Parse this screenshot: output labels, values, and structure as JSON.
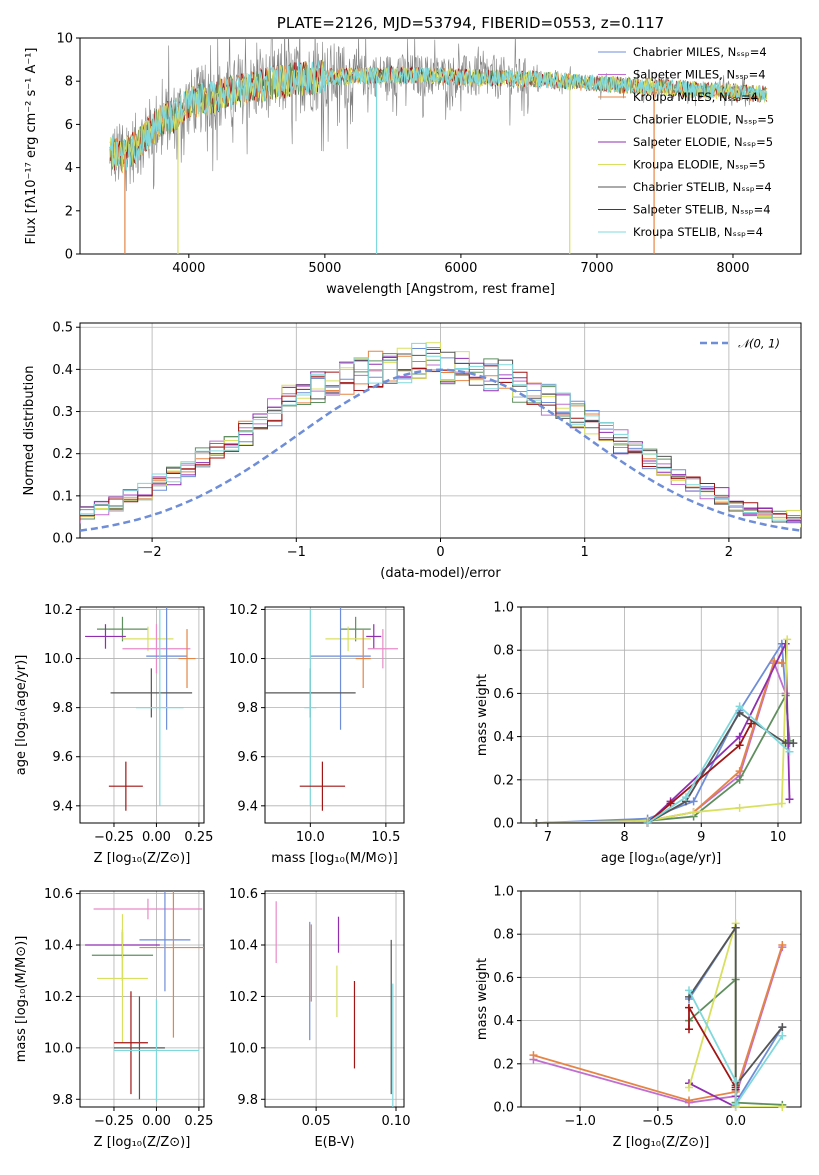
{
  "title": "PLATE=2126, MJD=53794, FIBERID=0553, z=0.117",
  "colors": {
    "Chabrier MILES": "#6f8ed8",
    "Salpeter MILES": "#c06fd0",
    "Kroupa MILES": "#e58545",
    "Chabrier ELODIE": "#5f8f5f",
    "Salpeter ELODIE": "#8f2fb0",
    "Kroupa ELODIE": "#d8e060",
    "Chabrier STELIB": "#555555",
    "Salpeter STELIB": "#a01515",
    "Kroupa STELIB": "#7fd8dc",
    "extra_pink": "#e88bc8",
    "gray_obs": "#808080",
    "grid": "#b0b0b0"
  },
  "chart_data": [
    {
      "id": "spectrum",
      "type": "line",
      "title": "PLATE=2126, MJD=53794, FIBERID=0553, z=0.117",
      "xlabel": "wavelength [Angstrom, rest frame]",
      "ylabel": "Flux [fλ10⁻¹⁷ erg cm⁻² s⁻¹ A⁻¹]",
      "xlim": [
        3200,
        8500
      ],
      "ylim": [
        0,
        10
      ],
      "xticks": [
        4000,
        5000,
        6000,
        7000,
        8000
      ],
      "yticks": [
        0,
        2,
        4,
        6,
        8,
        10
      ],
      "legend_position": "right",
      "legend": [
        "Chabrier MILES, Nₛₛₚ=4",
        "Salpeter MILES, Nₛₛₚ=4",
        "Kroupa MILES, Nₛₛₚ=4",
        "Chabrier ELODIE, Nₛₛₚ=5",
        "Salpeter ELODIE, Nₛₛₚ=5",
        "Kroupa ELODIE, Nₛₛₚ=5",
        "Chabrier STELIB, Nₛₛₚ=4",
        "Salpeter STELIB, Nₛₛₚ=4",
        "Kroupa STELIB, Nₛₛₚ=4"
      ],
      "continuum": {
        "x": [
          3420,
          3500,
          3600,
          3700,
          3800,
          3900,
          4000,
          4200,
          4400,
          4600,
          4800,
          5000,
          5500,
          6000,
          6500,
          7000,
          7500,
          8000,
          8250
        ],
        "y": [
          4.7,
          4.5,
          4.9,
          5.6,
          6.2,
          6.4,
          7.0,
          7.3,
          7.6,
          7.9,
          8.1,
          8.2,
          8.3,
          8.2,
          8.1,
          7.9,
          7.7,
          7.5,
          7.4
        ]
      },
      "spikes": [
        {
          "x": 3530,
          "y": 0,
          "color_key": "Kroupa MILES"
        },
        {
          "x": 3920,
          "y": 0,
          "color_key": "Kroupa ELODIE"
        },
        {
          "x": 5380,
          "y": 0,
          "color_key": "Kroupa STELIB"
        },
        {
          "x": 6800,
          "y": 0,
          "color_key": "Kroupa ELODIE"
        },
        {
          "x": 7420,
          "y": 0,
          "color_key": "Kroupa MILES"
        }
      ]
    },
    {
      "id": "residual-hist",
      "type": "histogram",
      "xlabel": "(data-model)/error",
      "ylabel": "Normed distribution",
      "xlim": [
        -2.5,
        2.5
      ],
      "ylim": [
        0,
        0.51
      ],
      "xticks": [
        -2,
        -1,
        0,
        1,
        2
      ],
      "yticks": [
        0.0,
        0.1,
        0.2,
        0.3,
        0.4,
        0.5
      ],
      "legend": [
        "𝒩(0, 1)"
      ],
      "legend_position": "top-right",
      "bin_width": 0.1,
      "center_values": [
        0.02,
        0.03,
        0.03,
        0.04,
        0.05,
        0.06,
        0.07,
        0.08,
        0.1,
        0.11,
        0.13,
        0.15,
        0.17,
        0.19,
        0.21,
        0.23,
        0.25,
        0.28,
        0.3,
        0.33,
        0.34,
        0.36,
        0.37,
        0.38,
        0.39,
        0.4,
        0.41,
        0.41,
        0.42,
        0.42,
        0.41,
        0.41,
        0.4,
        0.39,
        0.38,
        0.36,
        0.35,
        0.33,
        0.31,
        0.29,
        0.27,
        0.25,
        0.23,
        0.21,
        0.19,
        0.17,
        0.15,
        0.13,
        0.11,
        0.1,
        0.08,
        0.07,
        0.06,
        0.05,
        0.05,
        0.04,
        0.04,
        0.03,
        0.03,
        0.03,
        0.03
      ]
    },
    {
      "id": "z-age",
      "type": "errorbar",
      "xlabel": "Z [log₁₀(Z/Z⊙)]",
      "ylabel": "age  [log₁₀(age/yr)]",
      "xlim": [
        -0.45,
        0.28
      ],
      "ylim": [
        9.33,
        10.21
      ],
      "xticks": [
        -0.25,
        0.0,
        0.25
      ],
      "xticklabels": [
        "−0.25",
        "0.00",
        "0.25"
      ],
      "yticks": [
        9.4,
        9.6,
        9.8,
        10.0,
        10.2
      ],
      "points": [
        {
          "key": "Chabrier ELODIE",
          "x": -0.2,
          "xerr": 0.15,
          "y": 10.12,
          "yerr": 0.05
        },
        {
          "key": "Salpeter ELODIE",
          "x": -0.3,
          "xerr": 0.12,
          "y": 10.09,
          "yerr": 0.05
        },
        {
          "key": "Kroupa ELODIE",
          "x": -0.05,
          "xerr": 0.15,
          "y": 10.08,
          "yerr": 0.05
        },
        {
          "key": "extra_pink",
          "x": 0.0,
          "xerr": 0.2,
          "y": 10.04,
          "yerr": 0.1
        },
        {
          "key": "Chabrier MILES",
          "x": 0.06,
          "xerr": 0.12,
          "y": 10.01,
          "yerr": 0.3
        },
        {
          "key": "Kroupa MILES",
          "x": 0.18,
          "xerr": 0.05,
          "y": 10.0,
          "yerr": 0.12
        },
        {
          "key": "Chabrier STELIB",
          "x": -0.03,
          "xerr": 0.24,
          "y": 9.86,
          "yerr": 0.1
        },
        {
          "key": "Kroupa STELIB",
          "x": 0.02,
          "xerr": 0.14,
          "y": 9.8,
          "yerr": 0.4
        },
        {
          "key": "Salpeter STELIB",
          "x": -0.18,
          "xerr": 0.1,
          "y": 9.48,
          "yerr": 0.1
        }
      ]
    },
    {
      "id": "mass-age",
      "type": "errorbar",
      "xlabel": "mass [log₁₀(M/M⊙)]",
      "ylabel": "",
      "xlim": [
        9.7,
        10.62
      ],
      "ylim": [
        9.33,
        10.21
      ],
      "xticks": [
        10.0,
        10.5
      ],
      "xticklabels": [
        "10.0",
        "10.5"
      ],
      "yticks": [
        9.4,
        9.6,
        9.8,
        10.0,
        10.2
      ],
      "points": [
        {
          "key": "Chabrier ELODIE",
          "x": 10.3,
          "xerr": 0.1,
          "y": 10.12,
          "yerr": 0.05
        },
        {
          "key": "Salpeter ELODIE",
          "x": 10.42,
          "xerr": 0.05,
          "y": 10.09,
          "yerr": 0.05
        },
        {
          "key": "Kroupa ELODIE",
          "x": 10.25,
          "xerr": 0.15,
          "y": 10.08,
          "yerr": 0.05
        },
        {
          "key": "extra_pink",
          "x": 10.48,
          "xerr": 0.1,
          "y": 10.04,
          "yerr": 0.08
        },
        {
          "key": "Chabrier MILES",
          "x": 10.2,
          "xerr": 0.2,
          "y": 10.01,
          "yerr": 0.3
        },
        {
          "key": "Kroupa MILES",
          "x": 10.35,
          "xerr": 0.05,
          "y": 10.0,
          "yerr": 0.12
        },
        {
          "key": "Chabrier STELIB",
          "x": 10.0,
          "xerr": 0.3,
          "y": 9.86,
          "yerr": 0.1
        },
        {
          "key": "Kroupa STELIB",
          "x": 10.0,
          "xerr": 0.04,
          "y": 9.8,
          "yerr": 0.4
        },
        {
          "key": "Salpeter STELIB",
          "x": 10.08,
          "xerr": 0.15,
          "y": 9.48,
          "yerr": 0.1
        }
      ]
    },
    {
      "id": "age-weight",
      "type": "line",
      "xlabel": "age  [log₁₀(age/yr)]",
      "ylabel": "mass weight",
      "xlim": [
        6.65,
        10.3
      ],
      "ylim": [
        0,
        1.0
      ],
      "xticks": [
        7,
        8,
        9,
        10
      ],
      "yticks": [
        0.0,
        0.2,
        0.4,
        0.6,
        0.8,
        1.0
      ],
      "series": [
        {
          "key": "Chabrier MILES",
          "x": [
            6.85,
            8.3,
            8.9,
            9.5,
            10.05,
            10.15
          ],
          "y": [
            0.0,
            0.02,
            0.1,
            0.52,
            0.83,
            0.37
          ]
        },
        {
          "key": "Salpeter MILES",
          "x": [
            6.85,
            8.3,
            8.9,
            9.5,
            9.95,
            10.1
          ],
          "y": [
            0.0,
            0.01,
            0.05,
            0.22,
            0.74,
            0.6
          ]
        },
        {
          "key": "Kroupa MILES",
          "x": [
            6.85,
            8.3,
            8.9,
            9.5,
            9.95,
            10.05
          ],
          "y": [
            0.0,
            0.01,
            0.05,
            0.24,
            0.75,
            0.74
          ]
        },
        {
          "key": "Chabrier ELODIE",
          "x": [
            6.85,
            8.3,
            8.9,
            9.5,
            10.1,
            10.15
          ],
          "y": [
            0.0,
            0.01,
            0.03,
            0.2,
            0.59,
            0.38
          ]
        },
        {
          "key": "Salpeter ELODIE",
          "x": [
            8.3,
            8.6,
            9.5,
            10.1,
            10.15
          ],
          "y": [
            0.0,
            0.1,
            0.4,
            0.83,
            0.11
          ]
        },
        {
          "key": "Kroupa ELODIE",
          "x": [
            6.85,
            8.3,
            8.9,
            9.5,
            10.05,
            10.12
          ],
          "y": [
            0.0,
            0.01,
            0.05,
            0.07,
            0.09,
            0.85
          ]
        },
        {
          "key": "Chabrier STELIB",
          "x": [
            6.85,
            8.3,
            8.8,
            9.5,
            10.1,
            10.2
          ],
          "y": [
            0.0,
            0.0,
            0.1,
            0.51,
            0.37,
            0.37
          ]
        },
        {
          "key": "Salpeter STELIB",
          "x": [
            8.3,
            8.6,
            9.5,
            9.65
          ],
          "y": [
            0.0,
            0.09,
            0.36,
            0.46
          ]
        },
        {
          "key": "Kroupa STELIB",
          "x": [
            8.3,
            8.8,
            9.5,
            10.15
          ],
          "y": [
            0.0,
            0.12,
            0.54,
            0.33
          ]
        }
      ]
    },
    {
      "id": "z-mass",
      "type": "errorbar",
      "xlabel": "Z [log₁₀(Z/Z⊙)]",
      "ylabel": "mass [log₁₀(M/M⊙)]",
      "xlim": [
        -0.45,
        0.28
      ],
      "ylim": [
        9.77,
        10.61
      ],
      "xticks": [
        -0.25,
        0.0,
        0.25
      ],
      "xticklabels": [
        "−0.25",
        "0.00",
        "0.25"
      ],
      "yticks": [
        9.8,
        10.0,
        10.2,
        10.4,
        10.6
      ],
      "points": [
        {
          "key": "extra_pink",
          "x": -0.05,
          "xerr": 0.32,
          "y": 10.54,
          "yerr": 0.04
        },
        {
          "key": "Chabrier MILES",
          "x": 0.05,
          "xerr": 0.15,
          "y": 10.42,
          "yerr": 0.2
        },
        {
          "key": "Salpeter ELODIE",
          "x": -0.2,
          "xerr": 0.22,
          "y": 10.4,
          "yerr": 0.05
        },
        {
          "key": "Kroupa MILES",
          "x": 0.1,
          "xerr": 0.2,
          "y": 10.39,
          "yerr": 0.35
        },
        {
          "key": "Chabrier ELODIE",
          "x": -0.2,
          "xerr": 0.18,
          "y": 10.36,
          "yerr": 0.1
        },
        {
          "key": "Kroupa ELODIE",
          "x": -0.2,
          "xerr": 0.15,
          "y": 10.27,
          "yerr": 0.25
        },
        {
          "key": "Salpeter STELIB",
          "x": -0.15,
          "xerr": 0.1,
          "y": 10.02,
          "yerr": 0.2
        },
        {
          "key": "Chabrier STELIB",
          "x": -0.1,
          "xerr": 0.15,
          "y": 10.0,
          "yerr": 0.2
        },
        {
          "key": "Kroupa STELIB",
          "x": 0.0,
          "xerr": 0.25,
          "y": 9.99,
          "yerr": 0.2
        }
      ]
    },
    {
      "id": "ebv-mass",
      "type": "errorbar",
      "xlabel": "E(B-V)",
      "ylabel": "",
      "xlim": [
        0.018,
        0.105
      ],
      "ylim": [
        9.77,
        10.61
      ],
      "xticks": [
        0.05,
        0.1
      ],
      "xticklabels": [
        "0.05",
        "0.10"
      ],
      "yticks": [
        9.8,
        10.0,
        10.2,
        10.4,
        10.6
      ],
      "points": [
        {
          "key": "extra_pink",
          "x": 0.025,
          "xerr": 0,
          "y": 10.45,
          "yerr": 0.12
        },
        {
          "key": "Chabrier MILES",
          "x": 0.046,
          "xerr": 0,
          "y": 10.26,
          "yerr": 0.23
        },
        {
          "key": "Kroupa MILES",
          "x": 0.047,
          "xerr": 0,
          "y": 10.33,
          "yerr": 0.15
        },
        {
          "key": "Salpeter ELODIE",
          "x": 0.064,
          "xerr": 0,
          "y": 10.44,
          "yerr": 0.07
        },
        {
          "key": "Kroupa ELODIE",
          "x": 0.063,
          "xerr": 0,
          "y": 10.22,
          "yerr": 0.1
        },
        {
          "key": "Salpeter STELIB",
          "x": 0.074,
          "xerr": 0,
          "y": 10.09,
          "yerr": 0.17
        },
        {
          "key": "Chabrier STELIB",
          "x": 0.097,
          "xerr": 0,
          "y": 10.12,
          "yerr": 0.3
        },
        {
          "key": "Kroupa STELIB",
          "x": 0.098,
          "xerr": 0,
          "y": 10.0,
          "yerr": 0.25
        }
      ]
    },
    {
      "id": "z-weight",
      "type": "line",
      "xlabel": "Z [log₁₀(Z/Z⊙)]",
      "ylabel": "mass weight",
      "xlim": [
        -1.38,
        0.42
      ],
      "ylim": [
        0,
        1.0
      ],
      "xticks": [
        -1.0,
        -0.5,
        0.0
      ],
      "xticklabels": [
        "−1.0",
        "−0.5",
        "0.0"
      ],
      "yticks": [
        0.0,
        0.2,
        0.4,
        0.6,
        0.8,
        1.0
      ],
      "series": [
        {
          "key": "Chabrier MILES",
          "x": [
            -0.3,
            0.0,
            0.0,
            0.3
          ],
          "y": [
            0.5,
            0.83,
            0.02,
            0.37
          ]
        },
        {
          "key": "Salpeter MILES",
          "x": [
            -1.3,
            -0.3,
            0.0,
            0.3
          ],
          "y": [
            0.22,
            0.02,
            0.05,
            0.74
          ]
        },
        {
          "key": "Kroupa MILES",
          "x": [
            -1.3,
            -0.3,
            0.0,
            0.3
          ],
          "y": [
            0.24,
            0.03,
            0.07,
            0.75
          ]
        },
        {
          "key": "Chabrier ELODIE",
          "x": [
            -0.3,
            0.0,
            0.0,
            0.3
          ],
          "y": [
            0.4,
            0.59,
            0.02,
            0.01
          ]
        },
        {
          "key": "Salpeter ELODIE",
          "x": [
            -0.3,
            0.0,
            0.0
          ],
          "y": [
            0.11,
            0.0,
            0.05
          ]
        },
        {
          "key": "Kroupa ELODIE",
          "x": [
            -0.3,
            0.0,
            0.0,
            0.3
          ],
          "y": [
            0.09,
            0.85,
            0.0,
            0.0
          ]
        },
        {
          "key": "Chabrier STELIB",
          "x": [
            -0.3,
            0.0,
            0.0,
            0.3
          ],
          "y": [
            0.51,
            0.83,
            0.1,
            0.37
          ]
        },
        {
          "key": "Salpeter STELIB",
          "x": [
            -0.3,
            -0.3,
            0.0,
            0.0
          ],
          "y": [
            0.36,
            0.46,
            0.09,
            0.08
          ]
        },
        {
          "key": "Kroupa STELIB",
          "x": [
            -0.3,
            0.0,
            0.0,
            0.3
          ],
          "y": [
            0.54,
            0.12,
            0.01,
            0.33
          ]
        }
      ]
    }
  ]
}
